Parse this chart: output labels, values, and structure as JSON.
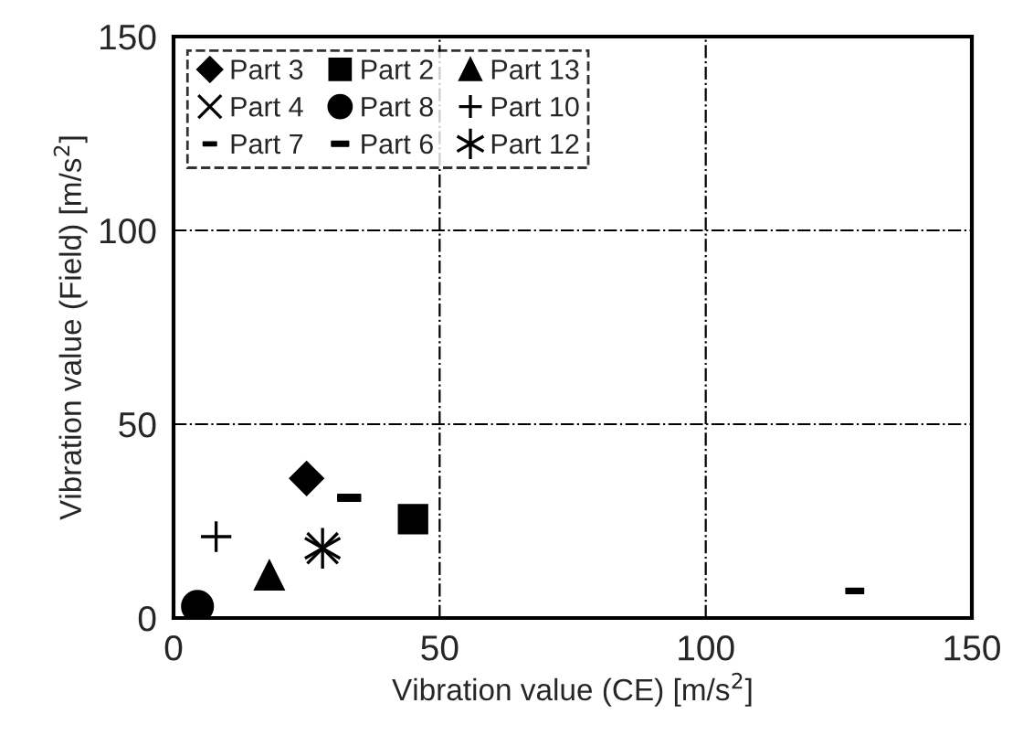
{
  "chart_data": {
    "type": "scatter",
    "xlabel": "Vibration value (CE) [m/s$^{2}$]",
    "ylabel": "Vibration value (Field) [m/s$^{2}$]",
    "xlim": [
      0,
      150
    ],
    "ylim": [
      0,
      150
    ],
    "xticks": [
      0,
      50,
      100,
      150
    ],
    "yticks": [
      0,
      50,
      100,
      150
    ],
    "grid": true,
    "legend": "top left",
    "series": [
      {
        "name": "Part 3",
        "color": "#000000",
        "marker": "diamond",
        "x": [
          25
        ],
        "values": [
          36
        ]
      },
      {
        "name": "Part 2",
        "color": "#000000",
        "marker": "square",
        "x": [
          45
        ],
        "values": [
          25.5
        ]
      },
      {
        "name": "Part 13",
        "color": "#000000",
        "marker": "triangle",
        "x": [
          18
        ],
        "values": [
          11
        ]
      },
      {
        "name": "Part 4",
        "color": "#000000",
        "x": [
          28
        ],
        "values": [
          18
        ]
      },
      {
        "name": "Part 8",
        "color": "#000000",
        "marker": "circle",
        "x": [
          4.5
        ],
        "values": [
          3
        ]
      },
      {
        "name": "Part 10",
        "color": "#000000",
        "x": [
          8
        ],
        "values": [
          21
        ]
      },
      {
        "name": "Part 7",
        "color": "#000000",
        "x": [
          128
        ],
        "values": [
          7
        ]
      },
      {
        "name": "Part 6",
        "color": "#000000",
        "x": [
          33
        ],
        "values": [
          31
        ]
      },
      {
        "name": "Part 12",
        "color": "#000000",
        "x": [
          28
        ],
        "values": [
          18
        ]
      }
    ]
  }
}
